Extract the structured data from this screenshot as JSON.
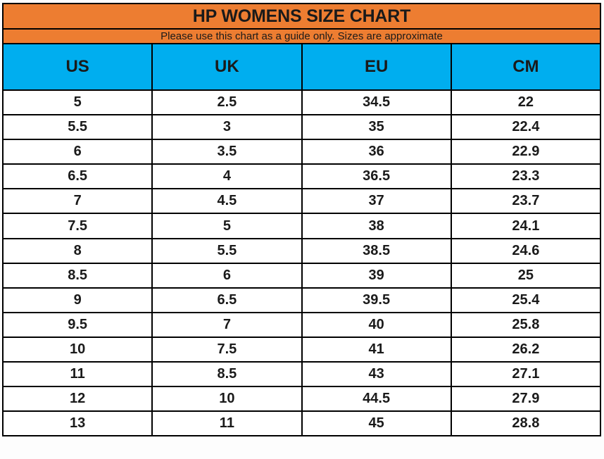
{
  "title": "HP WOMENS SIZE CHART",
  "subtitle": "Please use this chart as a guide only. Sizes are approximate",
  "table": {
    "columns": [
      "US",
      "UK",
      "EU",
      "CM"
    ],
    "rows": [
      [
        "5",
        "2.5",
        "34.5",
        "22"
      ],
      [
        "5.5",
        "3",
        "35",
        "22.4"
      ],
      [
        "6",
        "3.5",
        "36",
        "22.9"
      ],
      [
        "6.5",
        "4",
        "36.5",
        "23.3"
      ],
      [
        "7",
        "4.5",
        "37",
        "23.7"
      ],
      [
        "7.5",
        "5",
        "38",
        "24.1"
      ],
      [
        "8",
        "5.5",
        "38.5",
        "24.6"
      ],
      [
        "8.5",
        "6",
        "39",
        "25"
      ],
      [
        "9",
        "6.5",
        "39.5",
        "25.4"
      ],
      [
        "9.5",
        "7",
        "40",
        "25.8"
      ],
      [
        "10",
        "7.5",
        "41",
        "26.2"
      ],
      [
        "11",
        "8.5",
        "43",
        "27.1"
      ],
      [
        "12",
        "10",
        "44.5",
        "27.9"
      ],
      [
        "13",
        "11",
        "45",
        "28.8"
      ]
    ]
  },
  "colors": {
    "title_bg": "#ED7D31",
    "header_bg": "#00AEEF",
    "border": "#000000",
    "row_bg": "#FFFFFF",
    "text": "#1A1A1A"
  }
}
